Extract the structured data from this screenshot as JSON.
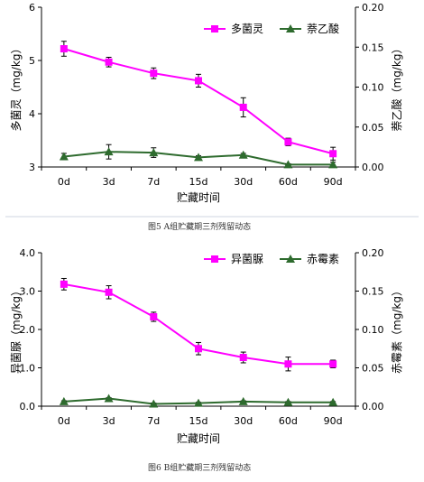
{
  "chart_data": [
    {
      "type": "line",
      "categories": [
        "0d",
        "3d",
        "7d",
        "15d",
        "30d",
        "60d",
        "90d"
      ],
      "xlabel": "贮藏时间",
      "ylabel": "多菌灵（mg/kg）",
      "y2label": "萘乙酸（mg/kg）",
      "ylim": [
        3,
        6
      ],
      "yticks": [
        "3",
        "4",
        "5",
        "6"
      ],
      "y2lim": [
        0,
        0.2
      ],
      "y2ticks": [
        "0.00",
        "0.05",
        "0.10",
        "0.15",
        "0.20"
      ],
      "series": [
        {
          "name": "多菌灵",
          "axis": "left",
          "marker": "square",
          "color": "#ff00ff",
          "values": [
            5.22,
            4.97,
            4.76,
            4.62,
            4.12,
            3.47,
            3.25
          ],
          "errors": [
            0.14,
            0.09,
            0.1,
            0.12,
            0.18,
            0.07,
            0.12
          ]
        },
        {
          "name": "萘乙酸",
          "axis": "right",
          "marker": "triangle",
          "color": "#2e6b2e",
          "values": [
            0.013,
            0.019,
            0.018,
            0.012,
            0.015,
            0.003,
            0.003
          ],
          "errors": [
            0.004,
            0.009,
            0.006,
            0.002,
            0.002,
            0.001,
            0.003
          ]
        }
      ],
      "legend_position": "top-right",
      "caption": "图5  A组贮藏期三剂残留动态"
    },
    {
      "type": "line",
      "categories": [
        "0d",
        "3d",
        "7d",
        "15d",
        "30d",
        "60d",
        "90d"
      ],
      "xlabel": "贮藏时间",
      "ylabel": "异菌脲（mg/kg）",
      "y2label": "赤霉素（mg/kg）",
      "ylim": [
        0,
        4
      ],
      "yticks": [
        "0.0",
        "1.0",
        "2.0",
        "3.0",
        "4.0"
      ],
      "y2lim": [
        0,
        0.2
      ],
      "y2ticks": [
        "0.00",
        "0.05",
        "0.10",
        "0.15",
        "0.20"
      ],
      "series": [
        {
          "name": "异菌脲",
          "axis": "left",
          "marker": "square",
          "color": "#ff00ff",
          "values": [
            3.18,
            2.97,
            2.33,
            1.5,
            1.27,
            1.1,
            1.1
          ],
          "errors": [
            0.15,
            0.17,
            0.12,
            0.16,
            0.14,
            0.18,
            0.1
          ]
        },
        {
          "name": "赤霉素",
          "axis": "right",
          "marker": "triangle",
          "color": "#2e6b2e",
          "values": [
            0.006,
            0.01,
            0.003,
            0.004,
            0.006,
            0.005,
            0.005
          ],
          "errors": [
            0.001,
            0.001,
            0.001,
            0.001,
            0.001,
            0.001,
            0.001
          ]
        }
      ],
      "legend_position": "top-right",
      "caption": "图6  B组贮藏期三剂残留动态"
    }
  ]
}
